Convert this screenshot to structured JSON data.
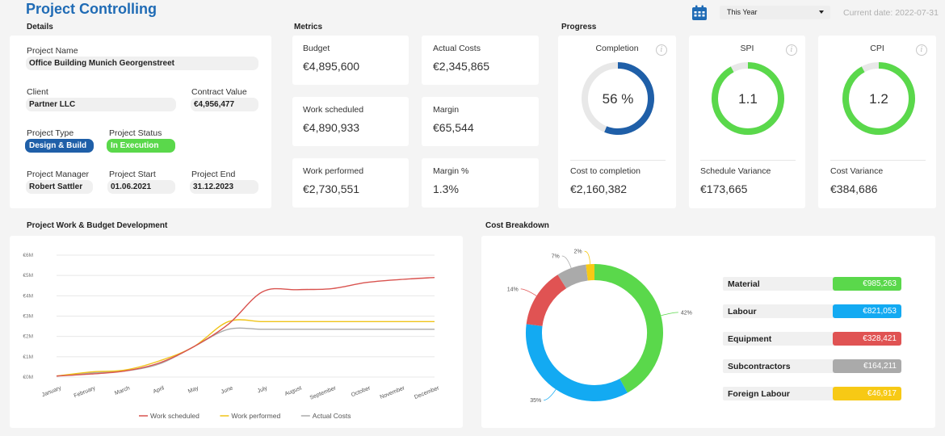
{
  "header": {
    "title": "Project Controlling",
    "period": "This Year",
    "current_date": "Current date: 2022-07-31"
  },
  "sections": {
    "details": "Details",
    "metrics": "Metrics",
    "progress": "Progress",
    "work_budget": "Project Work & Budget Development",
    "cost_breakdown": "Cost Breakdown"
  },
  "details": {
    "project_name_label": "Project Name",
    "project_name": "Office Building Munich Georgenstreet",
    "client_label": "Client",
    "client": "Partner LLC",
    "contract_value_label": "Contract Value",
    "contract_value": "€4,956,477",
    "project_type_label": "Project Type",
    "project_type": "Design & Build",
    "project_status_label": "Project Status",
    "project_status": "In Execution",
    "manager_label": "Project Manager",
    "manager": "Robert Sattler",
    "start_label": "Project Start",
    "start": "01.06.2021",
    "end_label": "Project End",
    "end": "31.12.2023"
  },
  "metrics": {
    "budget_label": "Budget",
    "budget": "€4,895,600",
    "actual_label": "Actual Costs",
    "actual": "€2,345,865",
    "scheduled_label": "Work scheduled",
    "scheduled": "€4,890,933",
    "margin_label": "Margin",
    "margin": "€65,544",
    "performed_label": "Work performed",
    "performed": "€2,730,551",
    "margin_pct_label": "Margin %",
    "margin_pct": "1.3%"
  },
  "progress": {
    "completion": {
      "label": "Completion",
      "value_text": "56 %",
      "fraction": 0.56,
      "color": "#1f5fa8",
      "sub_label": "Cost to completion",
      "sub_value": "€2,160,382"
    },
    "spi": {
      "label": "SPI",
      "value_text": "1.1",
      "fraction": 0.92,
      "color": "#5ad84b",
      "sub_label": "Schedule Variance",
      "sub_value": "€173,665"
    },
    "cpi": {
      "label": "CPI",
      "value_text": "1.2",
      "fraction": 0.92,
      "color": "#5ad84b",
      "sub_label": "Cost Variance",
      "sub_value": "€384,686"
    }
  },
  "chart_data": [
    {
      "type": "line",
      "title": "Project Work & Budget Development",
      "categories": [
        "January",
        "February",
        "March",
        "April",
        "May",
        "June",
        "July",
        "August",
        "September",
        "October",
        "November",
        "December"
      ],
      "yticks": [
        "€0M",
        "€1M",
        "€2M",
        "€3M",
        "€4M",
        "€5M",
        "€6M"
      ],
      "ylim": [
        0,
        6
      ],
      "series": [
        {
          "name": "Work scheduled",
          "color": "#d9534f",
          "values": [
            0.05,
            0.15,
            0.3,
            0.7,
            1.5,
            2.6,
            4.2,
            4.3,
            4.35,
            4.65,
            4.8,
            4.9
          ]
        },
        {
          "name": "Work performed",
          "color": "#f0c419",
          "values": [
            0.05,
            0.25,
            0.35,
            0.8,
            1.5,
            2.73,
            2.73,
            2.73,
            2.73,
            2.73,
            2.73,
            2.73
          ]
        },
        {
          "name": "Actual Costs",
          "color": "#aaaaaa",
          "values": [
            0.05,
            0.2,
            0.3,
            0.65,
            1.5,
            2.35,
            2.35,
            2.35,
            2.35,
            2.35,
            2.35,
            2.35
          ]
        }
      ],
      "grid": true,
      "legend": "bottom"
    },
    {
      "type": "pie",
      "title": "Cost Breakdown",
      "series": [
        {
          "name": "Material",
          "value": 985263,
          "display": "€985,263",
          "pct": "42%",
          "color": "#5ad84b"
        },
        {
          "name": "Labour",
          "value": 821053,
          "display": "€821,053",
          "pct": "35%",
          "color": "#13aaf2"
        },
        {
          "name": "Equipment",
          "value": 328421,
          "display": "€328,421",
          "pct": "14%",
          "color": "#e05353"
        },
        {
          "name": "Subcontractors",
          "value": 164211,
          "display": "€164,211",
          "pct": "7%",
          "color": "#aaaaaa"
        },
        {
          "name": "Foreign Labour",
          "value": 46917,
          "display": "€46,917",
          "pct": "2%",
          "color": "#f7c915"
        }
      ]
    }
  ]
}
